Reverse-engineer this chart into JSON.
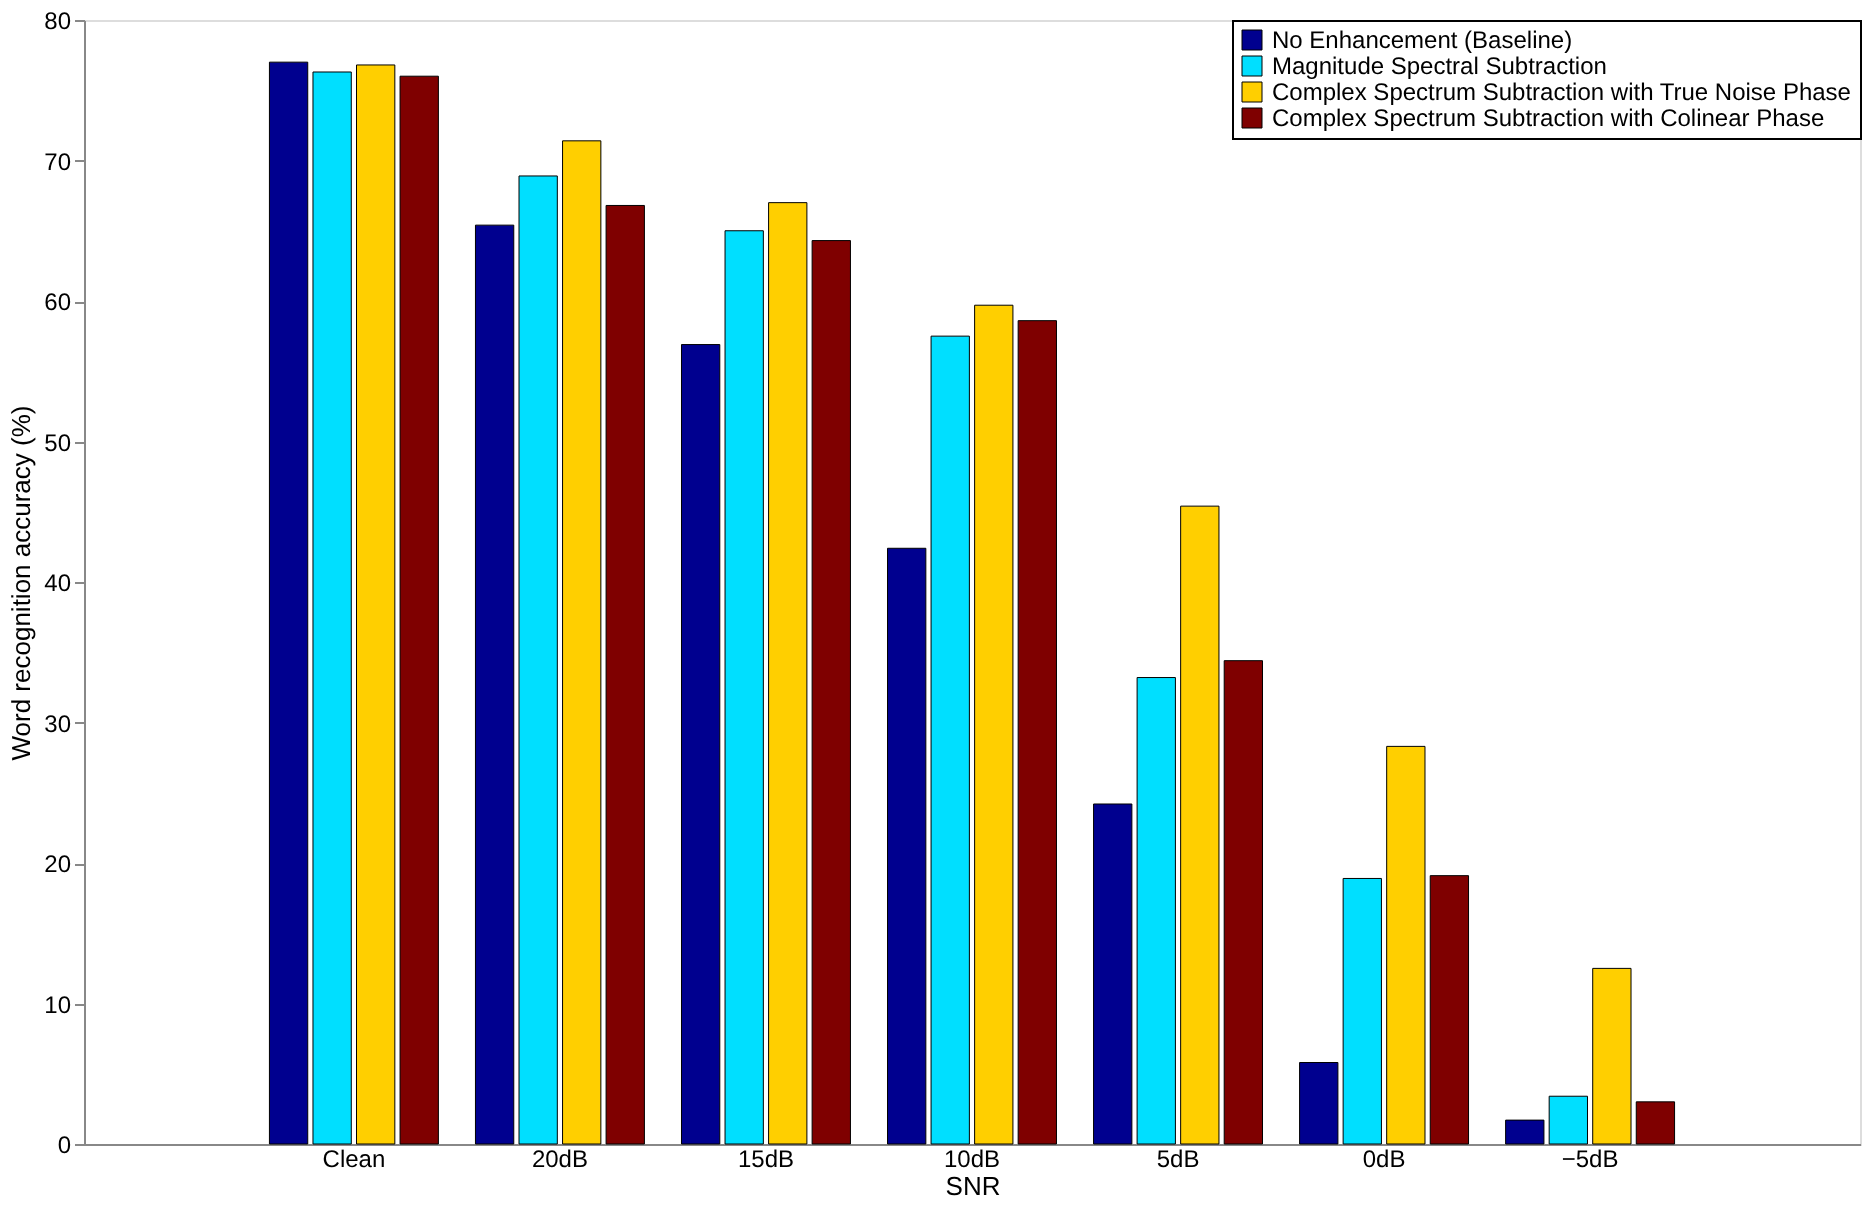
{
  "chart_data": {
    "type": "bar",
    "xlabel": "SNR",
    "ylabel": "Word recognition accuracy (%)",
    "categories": [
      "Clean",
      "20dB",
      "15dB",
      "10dB",
      "5dB",
      "0dB",
      "−5dB"
    ],
    "series": [
      {
        "name": "No Enhancement (Baseline)",
        "color": "#00008f",
        "values": [
          77.0,
          65.4,
          56.9,
          42.4,
          24.2,
          5.8,
          1.7
        ]
      },
      {
        "name": "Magnitude Spectral Subtraction",
        "color": "#00dfff",
        "values": [
          76.3,
          68.9,
          65.0,
          57.5,
          33.2,
          18.9,
          3.4
        ]
      },
      {
        "name": "Complex Spectrum Subtraction with True Noise Phase",
        "color": "#ffcf00",
        "values": [
          76.8,
          71.4,
          67.0,
          59.7,
          45.4,
          28.3,
          12.5
        ]
      },
      {
        "name": "Complex Spectrum Subtraction with Colinear Phase",
        "color": "#7f0000",
        "values": [
          76.0,
          66.8,
          64.3,
          58.6,
          34.4,
          19.1,
          3.0
        ]
      }
    ],
    "ylim": [
      0,
      80
    ],
    "yticks": [
      0,
      10,
      20,
      30,
      40,
      50,
      60,
      70,
      80
    ],
    "grid": false,
    "legend": "top right"
  }
}
